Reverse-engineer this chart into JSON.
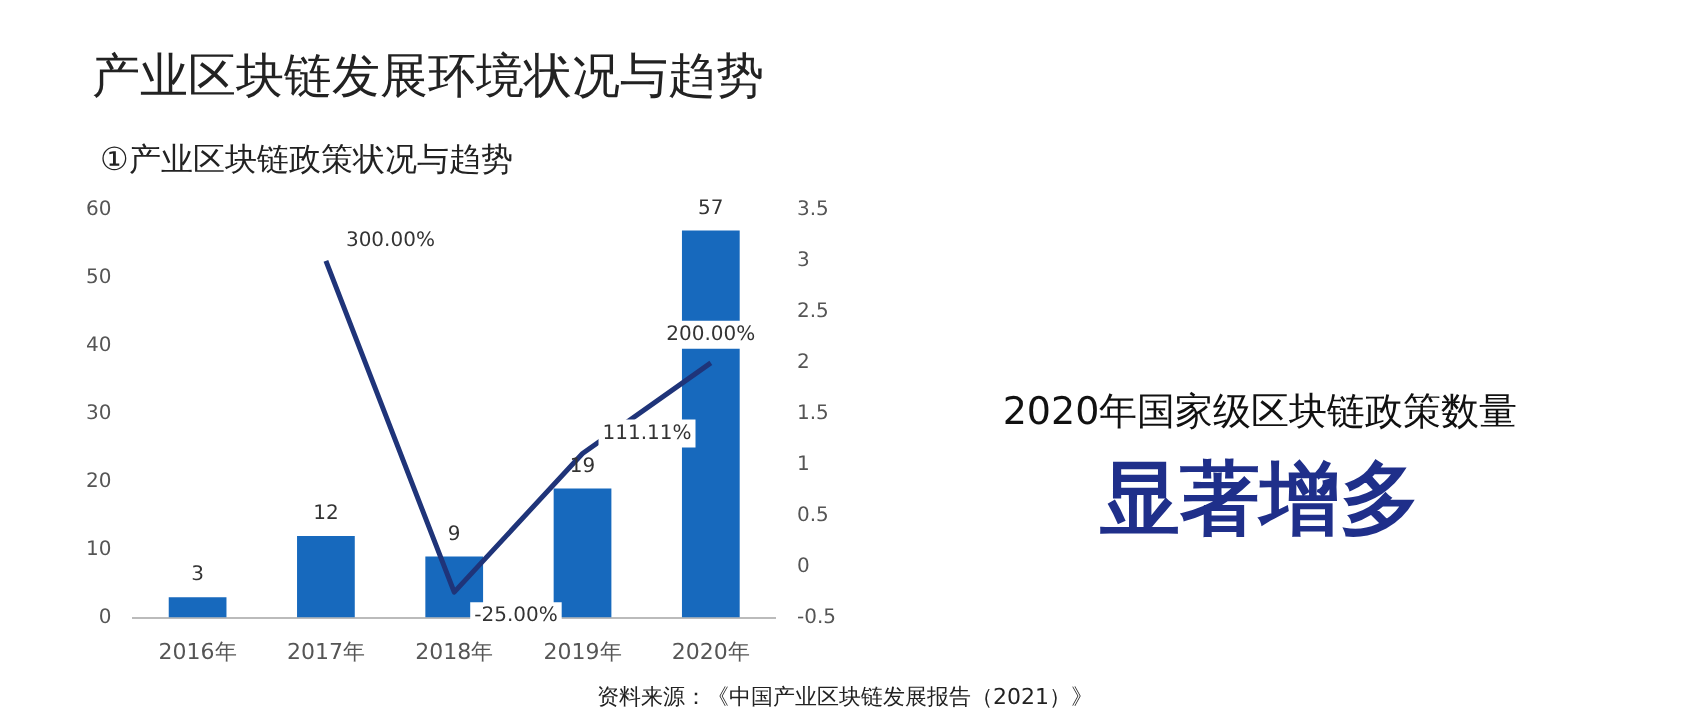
{
  "chart_data": {
    "type": "bar",
    "title": "产业区块链发展环境状况与趋势",
    "subtitle": "①产业区块链政策状况与趋势",
    "categories": [
      "2016年",
      "2017年",
      "2018年",
      "2019年",
      "2020年"
    ],
    "series": [
      {
        "color": "#1769bd",
        "values": [
          3,
          12,
          9,
          19,
          57
        ],
        "value_labels": [
          "3",
          "12",
          "9",
          "19",
          "57"
        ]
      },
      {
        "type": "line",
        "axis": "y2",
        "color": "#1f3479",
        "values": [
          null,
          3,
          -0.25,
          1.1111,
          2
        ],
        "value_labels": [
          null,
          "300.00%",
          "-25.00%",
          "111.11%",
          "200.00%"
        ]
      }
    ],
    "ylim": [
      0,
      60
    ],
    "yticks": [
      0,
      10,
      20,
      30,
      40,
      50,
      60
    ],
    "y2lim": [
      -0.5,
      3.5
    ],
    "y2ticks": [
      -0.5,
      0,
      0.5,
      1,
      1.5,
      2,
      2.5,
      3,
      3.5
    ],
    "grid": false,
    "legend": false,
    "marker": "none",
    "line_style": "solid",
    "annotations": [
      "2020年国家级区块链政策数量",
      "显著增多",
      "资料来源：《中国产业区块链发展报告（2021）》"
    ]
  }
}
